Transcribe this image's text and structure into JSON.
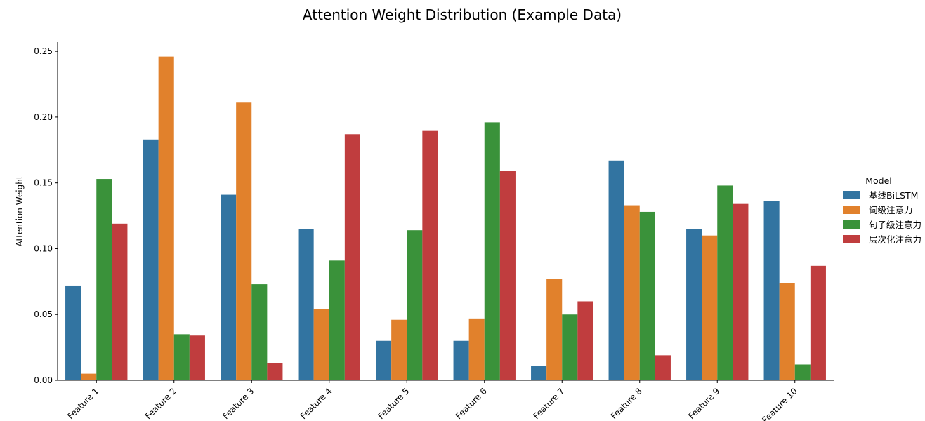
{
  "chart_data": {
    "type": "bar",
    "title": "Attention Weight Distribution (Example Data)",
    "xlabel": "",
    "ylabel": "Attention Weight",
    "categories": [
      "Feature 1",
      "Feature 2",
      "Feature 3",
      "Feature 4",
      "Feature 5",
      "Feature 6",
      "Feature 7",
      "Feature 8",
      "Feature 9",
      "Feature 10"
    ],
    "ylim": [
      0,
      0.257
    ],
    "yticks": [
      0.0,
      0.05,
      0.1,
      0.15,
      0.2,
      0.25
    ],
    "ytick_labels": [
      "0.00",
      "0.05",
      "0.10",
      "0.15",
      "0.20",
      "0.25"
    ],
    "grid": false,
    "legend": {
      "title": "Model",
      "placement": "right"
    },
    "series": [
      {
        "name": "基线BiLSTM",
        "color": "#3274a1",
        "values": [
          0.072,
          0.183,
          0.141,
          0.115,
          0.03,
          0.03,
          0.011,
          0.167,
          0.115,
          0.136
        ]
      },
      {
        "name": "词级注意力",
        "color": "#e1812c",
        "values": [
          0.005,
          0.246,
          0.211,
          0.054,
          0.046,
          0.047,
          0.077,
          0.133,
          0.11,
          0.074
        ]
      },
      {
        "name": "句子级注意力",
        "color": "#3a923a",
        "values": [
          0.153,
          0.035,
          0.073,
          0.091,
          0.114,
          0.196,
          0.05,
          0.128,
          0.148,
          0.012
        ]
      },
      {
        "name": "层次化注意力",
        "color": "#c03d3e",
        "values": [
          0.119,
          0.034,
          0.013,
          0.187,
          0.19,
          0.159,
          0.06,
          0.019,
          0.134,
          0.087
        ]
      }
    ]
  }
}
